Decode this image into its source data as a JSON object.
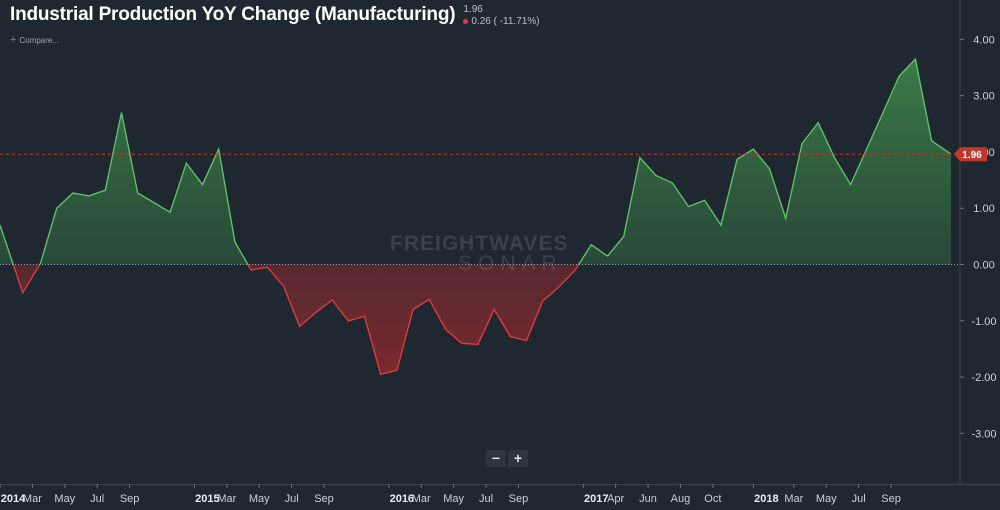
{
  "header": {
    "title": "Industrial Production YoY Change (Manufacturing)",
    "last_value": "1.96",
    "change": "0.26 ( -11.71%)",
    "compare_label": "Compare..."
  },
  "watermark": {
    "line1": "FREIGHTWAVES",
    "line2": "SONAR"
  },
  "zoom": {
    "minus": "−",
    "plus": "+"
  },
  "colors": {
    "background": "#1f2831",
    "positive": "#5fbf6a",
    "negative": "#e0393e",
    "last_value_badge": "#c0392b"
  },
  "chart_data": {
    "type": "area",
    "title": "Industrial Production YoY Change (Manufacturing)",
    "last_value": 1.96,
    "ylim": [
      -3.9,
      4.7
    ],
    "y_ticks": [
      "-3.00",
      "-2.00",
      "-1.00",
      "0.00",
      "1.00",
      "2.00",
      "3.00",
      "4.00"
    ],
    "y_tick_values": [
      -3,
      -2,
      -1,
      0,
      1,
      2,
      3,
      4
    ],
    "x_tick_labels": [
      {
        "t": 0.0,
        "label": "2014",
        "year": true
      },
      {
        "t": 2.0,
        "label": "Mar",
        "year": false
      },
      {
        "t": 4.0,
        "label": "May",
        "year": false
      },
      {
        "t": 6.0,
        "label": "Jul",
        "year": false
      },
      {
        "t": 8.0,
        "label": "Sep",
        "year": false
      },
      {
        "t": 12.0,
        "label": "2015",
        "year": true
      },
      {
        "t": 14.0,
        "label": "Mar",
        "year": false
      },
      {
        "t": 16.0,
        "label": "May",
        "year": false
      },
      {
        "t": 18.0,
        "label": "Jul",
        "year": false
      },
      {
        "t": 20.0,
        "label": "Sep",
        "year": false
      },
      {
        "t": 24.0,
        "label": "2016",
        "year": true
      },
      {
        "t": 26.0,
        "label": "Mar",
        "year": false
      },
      {
        "t": 28.0,
        "label": "May",
        "year": false
      },
      {
        "t": 30.0,
        "label": "Jul",
        "year": false
      },
      {
        "t": 32.0,
        "label": "Sep",
        "year": false
      },
      {
        "t": 36.0,
        "label": "2017",
        "year": true
      },
      {
        "t": 38.0,
        "label": "Apr",
        "year": false
      },
      {
        "t": 40.0,
        "label": "Jun",
        "year": false
      },
      {
        "t": 42.0,
        "label": "Aug",
        "year": false
      },
      {
        "t": 44.0,
        "label": "Oct",
        "year": false
      },
      {
        "t": 46.5,
        "label": "2018",
        "year": true
      },
      {
        "t": 49.0,
        "label": "Mar",
        "year": false
      },
      {
        "t": 51.0,
        "label": "May",
        "year": false
      },
      {
        "t": 53.0,
        "label": "Jul",
        "year": false
      },
      {
        "t": 55.0,
        "label": "Sep",
        "year": false
      }
    ],
    "x_range": [
      0.0,
      58.7
    ],
    "series": [
      {
        "points": [
          [
            0.0,
            0.7
          ],
          [
            1.4,
            -0.5
          ],
          [
            2.5,
            0.02
          ],
          [
            3.5,
            1.0
          ],
          [
            4.5,
            1.27
          ],
          [
            5.5,
            1.22
          ],
          [
            6.5,
            1.32
          ],
          [
            7.5,
            2.7
          ],
          [
            8.5,
            1.27
          ],
          [
            9.5,
            1.1
          ],
          [
            10.5,
            0.93
          ],
          [
            11.5,
            1.8
          ],
          [
            12.5,
            1.42
          ],
          [
            13.5,
            2.05
          ],
          [
            14.5,
            0.4
          ],
          [
            15.5,
            -0.1
          ],
          [
            16.5,
            -0.05
          ],
          [
            17.5,
            -0.38
          ],
          [
            18.5,
            -1.1
          ],
          [
            19.5,
            -0.85
          ],
          [
            20.5,
            -0.63
          ],
          [
            21.5,
            -1.0
          ],
          [
            22.5,
            -0.92
          ],
          [
            23.5,
            -1.95
          ],
          [
            24.5,
            -1.88
          ],
          [
            25.5,
            -0.8
          ],
          [
            26.5,
            -0.62
          ],
          [
            27.5,
            -1.15
          ],
          [
            28.5,
            -1.4
          ],
          [
            29.5,
            -1.42
          ],
          [
            30.5,
            -0.8
          ],
          [
            31.5,
            -1.28
          ],
          [
            32.5,
            -1.35
          ],
          [
            33.5,
            -0.65
          ],
          [
            34.5,
            -0.4
          ],
          [
            35.5,
            -0.1
          ],
          [
            36.5,
            0.35
          ],
          [
            37.5,
            0.15
          ],
          [
            38.5,
            0.5
          ],
          [
            39.5,
            1.9
          ],
          [
            40.5,
            1.58
          ],
          [
            41.5,
            1.45
          ],
          [
            42.5,
            1.03
          ],
          [
            43.5,
            1.14
          ],
          [
            44.5,
            0.7
          ],
          [
            45.5,
            1.87
          ],
          [
            46.5,
            2.05
          ],
          [
            47.5,
            1.7
          ],
          [
            48.5,
            0.82
          ],
          [
            49.5,
            2.15
          ],
          [
            50.5,
            2.52
          ],
          [
            51.5,
            1.9
          ],
          [
            52.5,
            1.42
          ],
          [
            53.5,
            2.06
          ],
          [
            54.5,
            2.7
          ],
          [
            55.5,
            3.35
          ],
          [
            56.5,
            3.65
          ],
          [
            57.5,
            2.2
          ],
          [
            58.7,
            1.96
          ]
        ]
      }
    ]
  }
}
